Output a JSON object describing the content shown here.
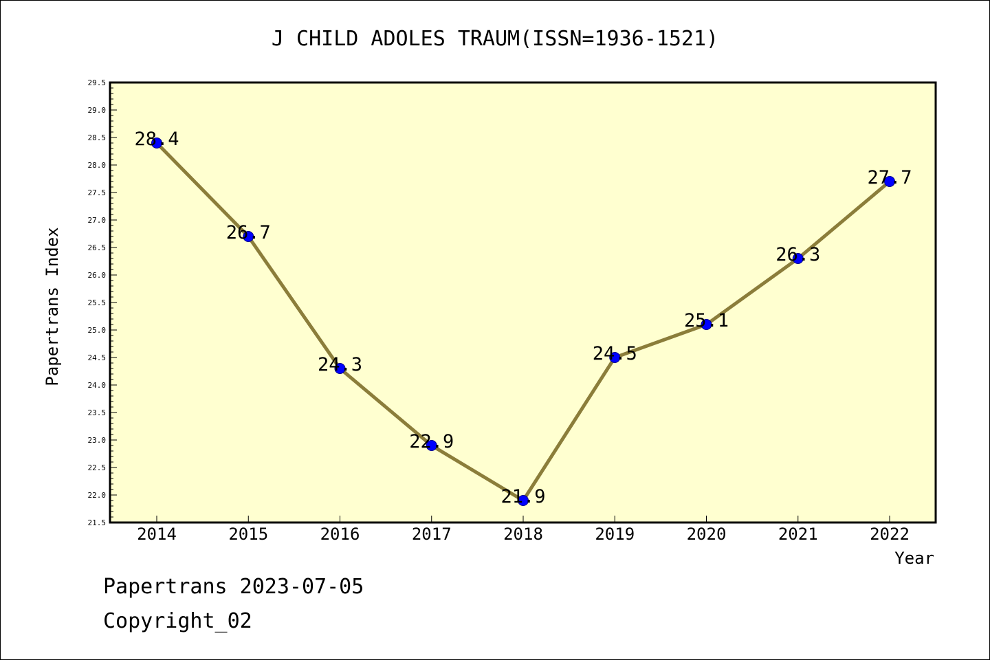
{
  "chart_data": {
    "type": "line",
    "title": "J CHILD ADOLES TRAUM(ISSN=1936-1521)",
    "xlabel": "Year",
    "ylabel": "Papertrans Index",
    "categories": [
      "2014",
      "2015",
      "2016",
      "2017",
      "2018",
      "2019",
      "2020",
      "2021",
      "2022"
    ],
    "values": [
      28.4,
      26.7,
      24.3,
      22.9,
      21.9,
      24.5,
      25.1,
      26.3,
      27.7
    ],
    "data_labels": [
      "28.4",
      "26.7",
      "24.3",
      "22.9",
      "21.9",
      "24.5",
      "25.1",
      "26.3",
      "27.7"
    ],
    "ylim": [
      21.5,
      29.5
    ],
    "yticks": [
      "21.5",
      "22.0",
      "22.5",
      "23.0",
      "23.5",
      "24.0",
      "24.5",
      "25.0",
      "25.5",
      "26.0",
      "26.5",
      "27.0",
      "27.5",
      "28.0",
      "28.5",
      "29.0",
      "29.5"
    ],
    "grid": false,
    "colors": {
      "plot_background": "#ffffd0",
      "line": "#8b7d3a",
      "marker": "#0000ff"
    }
  },
  "footer": {
    "line1": "Papertrans 2023-07-05",
    "line2": "Copyright_02"
  }
}
